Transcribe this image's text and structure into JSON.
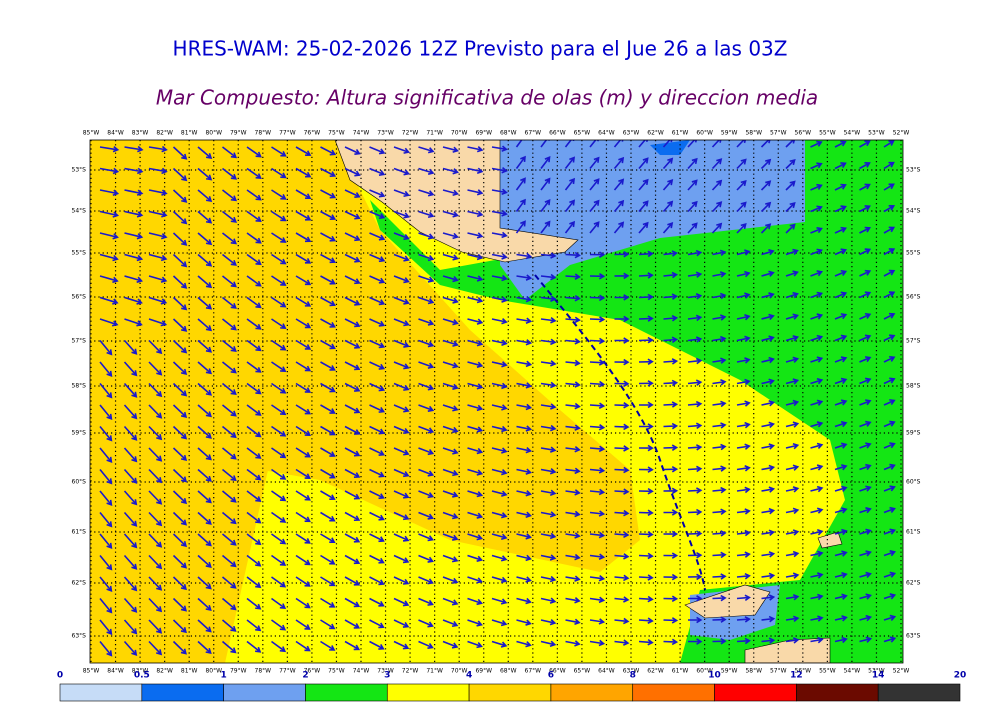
{
  "title": "HRES-WAM: 25-02-2026 12Z Previsto para el Jue 26 a las 03Z",
  "subtitle": "Mar Compuesto: Altura significativa de olas (m) y direccion media",
  "map": {
    "longitudes": [
      "85°W",
      "84°W",
      "83°W",
      "82°W",
      "81°W",
      "80°W",
      "79°W",
      "78°W",
      "77°W",
      "76°W",
      "75°W",
      "74°W",
      "73°W",
      "72°W",
      "71°W",
      "70°W",
      "69°W",
      "68°W",
      "67°W",
      "66°W",
      "65°W",
      "64°W",
      "63°W",
      "62°W",
      "61°W",
      "60°W",
      "59°W",
      "58°W",
      "57°W",
      "56°W",
      "55°W",
      "54°W",
      "53°W",
      "52°W"
    ],
    "latitudes": [
      "53°S",
      "54°S",
      "55°S",
      "56°S",
      "57°S",
      "58°S",
      "59°S",
      "60°S",
      "61°S",
      "62°S",
      "63°S"
    ]
  },
  "colorbar": {
    "ticks": [
      0,
      0.5,
      1,
      2,
      3,
      4,
      6,
      8,
      10,
      12,
      14,
      20
    ],
    "colors": [
      "#c6dcf7",
      "#0a6cf0",
      "#6ea0f0",
      "#14e614",
      "#ffff00",
      "#ffd700",
      "#ffa500",
      "#ff7000",
      "#ff0000",
      "#6b0a00",
      "#333333"
    ]
  }
}
